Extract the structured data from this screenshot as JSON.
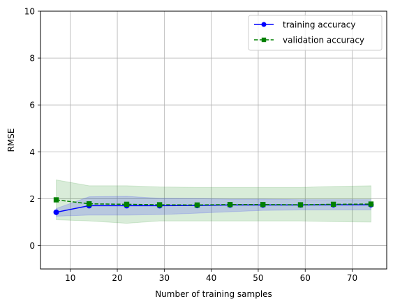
{
  "chart_data": {
    "type": "line",
    "title": "",
    "xlabel": "Number of training samples",
    "ylabel": "RMSE",
    "xlim": [
      3.65,
      77.35
    ],
    "ylim": [
      -1,
      10
    ],
    "xticks": [
      10,
      20,
      30,
      40,
      50,
      60,
      70
    ],
    "yticks": [
      0,
      2,
      4,
      6,
      8,
      10
    ],
    "grid": true,
    "legend_position": "top-right",
    "x": [
      7,
      14,
      22,
      29,
      37,
      44,
      51,
      59,
      66,
      74
    ],
    "series": [
      {
        "name": "training accuracy",
        "color": "#0000ff",
        "linestyle": "solid",
        "marker": "circle",
        "values": [
          1.42,
          1.7,
          1.7,
          1.7,
          1.71,
          1.73,
          1.73,
          1.73,
          1.74,
          1.74
        ],
        "band_lower": [
          1.25,
          1.3,
          1.3,
          1.32,
          1.38,
          1.44,
          1.5,
          1.52,
          1.52,
          1.52
        ],
        "band_upper": [
          1.58,
          2.08,
          2.1,
          2.02,
          2.0,
          1.98,
          1.98,
          1.96,
          1.96,
          1.96
        ],
        "band_color": "#0000ff"
      },
      {
        "name": "validation accuracy",
        "color": "#008000",
        "linestyle": "dashed",
        "marker": "square",
        "values": [
          1.95,
          1.78,
          1.76,
          1.74,
          1.73,
          1.75,
          1.75,
          1.74,
          1.76,
          1.77
        ],
        "band_lower": [
          1.1,
          1.05,
          0.95,
          1.05,
          1.05,
          1.05,
          1.05,
          1.05,
          1.02,
          1.0
        ],
        "band_upper": [
          2.8,
          2.55,
          2.55,
          2.5,
          2.48,
          2.48,
          2.48,
          2.48,
          2.52,
          2.55
        ],
        "band_color": "#008000"
      }
    ]
  }
}
